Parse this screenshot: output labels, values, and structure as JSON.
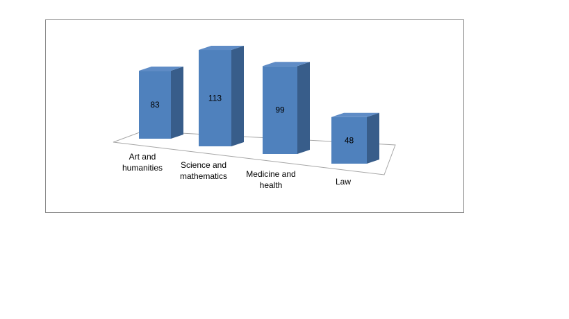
{
  "chart_data": {
    "type": "bar3d",
    "categories": [
      "Art and humanities",
      "Science and mathematics",
      "Medicine and health",
      "Law"
    ],
    "values": [
      83,
      113,
      99,
      48
    ],
    "color": "#4f81bd"
  }
}
